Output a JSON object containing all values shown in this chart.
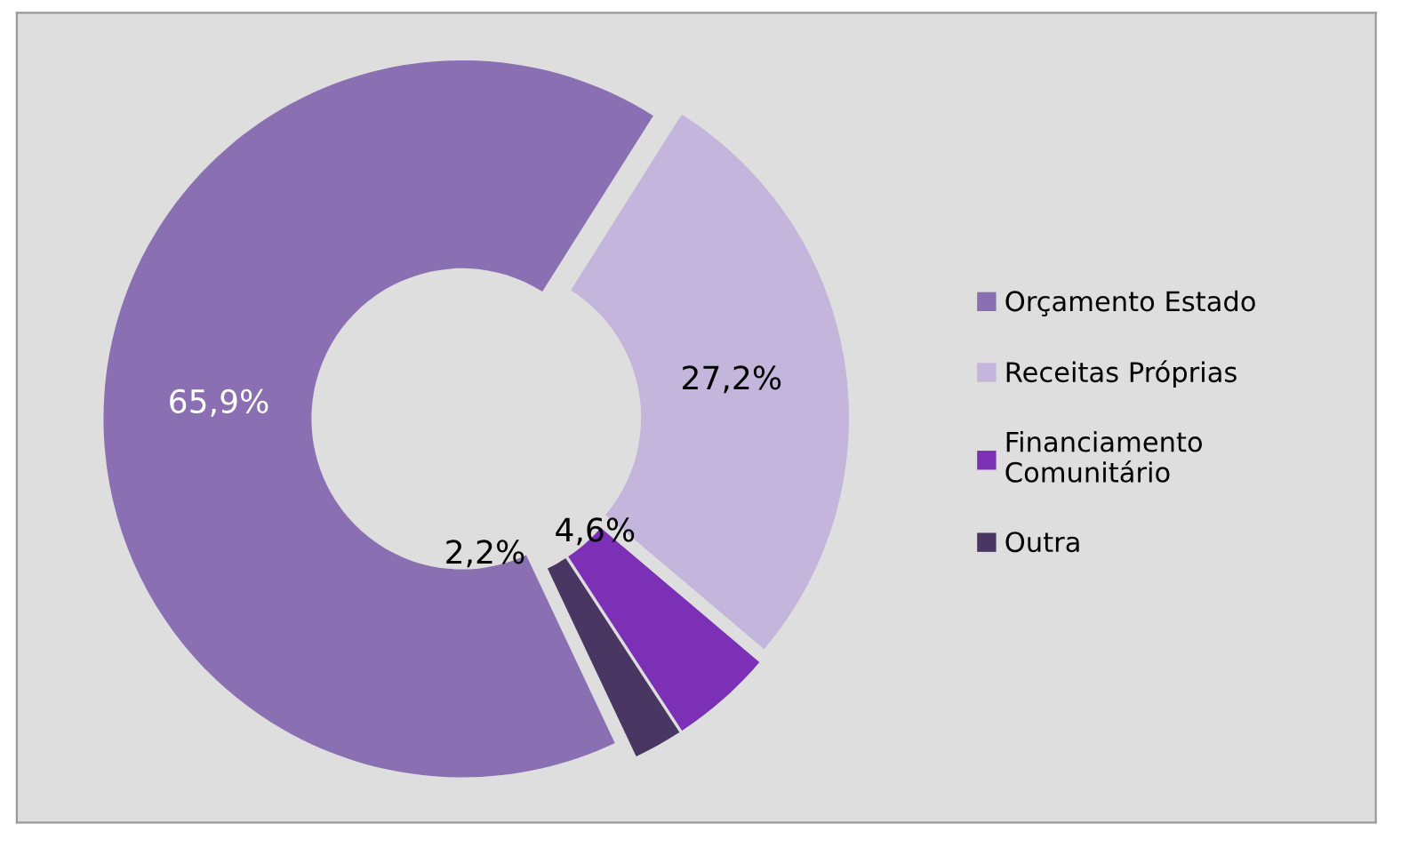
{
  "chart_data": {
    "type": "donut",
    "categories": [
      "Orçamento Estado",
      "Receitas Próprias",
      "Financiamento Comunitário",
      "Outra"
    ],
    "values": [
      65.9,
      27.2,
      4.6,
      2.2
    ],
    "colors": [
      "#8a70b2",
      "#c4b5dc",
      "#7b30b5",
      "#4a3663"
    ],
    "value_labels": [
      "65,9%",
      "27,2%",
      "4,6%",
      "2,2%"
    ],
    "legend": "right"
  }
}
